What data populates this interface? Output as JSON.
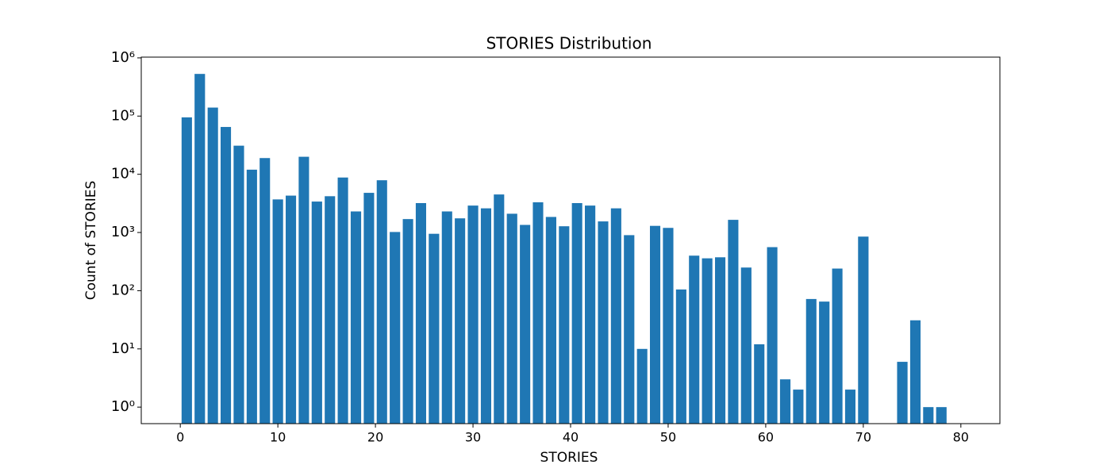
{
  "chart_data": {
    "type": "histogram",
    "title": "STORIES Distribution",
    "x_label": "STORIES",
    "y_label": "Count of STORIES",
    "bins": [
      0,
      1.33,
      2.67,
      4,
      5.33,
      6.67,
      8,
      9.33,
      10.67,
      12,
      13.33,
      14.67,
      16,
      17.33,
      18.67,
      20,
      21.33,
      22.67,
      24,
      25.33,
      26.67,
      28,
      29.33,
      30.67,
      32,
      33.33,
      34.67,
      36,
      37.33,
      38.67,
      40,
      41.33,
      42.67,
      44,
      45.33,
      46.67,
      48,
      49.33,
      50.67,
      52,
      53.33,
      54.67,
      56,
      57.33,
      58.67,
      60,
      61.33,
      62.67,
      64,
      65.33,
      66.67,
      68,
      69.33,
      70.67,
      72,
      73.33,
      74.67,
      76,
      77.33,
      78.67,
      80
    ],
    "values": [
      95000,
      530000,
      140000,
      65000,
      31000,
      12000,
      19000,
      3700,
      4300,
      20000,
      3400,
      4200,
      8800,
      2300,
      4800,
      7900,
      1020,
      1700,
      3200,
      950,
      2300,
      1750,
      2900,
      2600,
      4500,
      2100,
      1350,
      3300,
      1850,
      1280,
      3200,
      2900,
      1550,
      2600,
      900,
      10,
      1300,
      1200,
      105,
      400,
      360,
      375,
      1650,
      250,
      12,
      560,
      3,
      2,
      72,
      65,
      240,
      2,
      850,
      0,
      0,
      6,
      31,
      1,
      1,
      0
    ],
    "color": "#1f77b4",
    "log_y": true,
    "xlim": [
      -4,
      84
    ],
    "xticks": [
      0,
      10,
      20,
      30,
      40,
      50,
      60,
      70,
      80
    ],
    "ylim": [
      0.52,
      1030000
    ],
    "yticks": [
      {
        "value": 1,
        "label": "10⁰"
      },
      {
        "value": 10,
        "label": "10¹"
      },
      {
        "value": 100,
        "label": "10²"
      },
      {
        "value": 1000,
        "label": "10³"
      },
      {
        "value": 10000,
        "label": "10⁴"
      },
      {
        "value": 100000,
        "label": "10⁵"
      },
      {
        "value": 1000000,
        "label": "10⁶"
      }
    ]
  }
}
